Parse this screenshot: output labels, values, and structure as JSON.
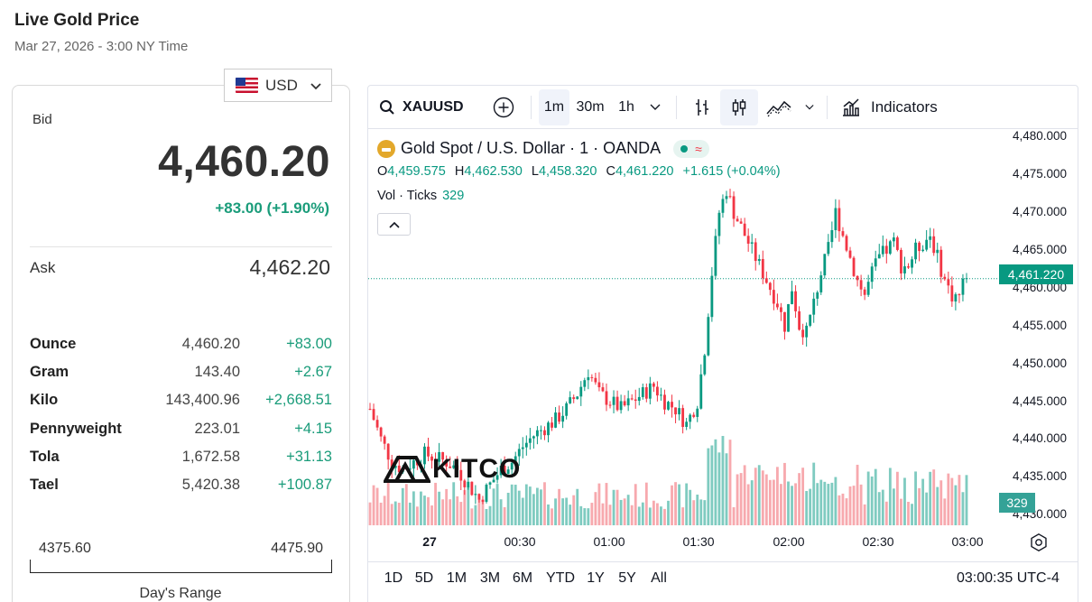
{
  "header": {
    "title": "Live Gold Price",
    "date": "Mar 27, 2026 - 3:00 NY Time"
  },
  "currency": {
    "selected": "USD",
    "flag_icon": "us-flag-icon"
  },
  "quote": {
    "bid_label": "Bid",
    "bid": "4,460.20",
    "change": "+83.00 (+1.90%)",
    "ask_label": "Ask",
    "ask": "4,462.20"
  },
  "units": [
    {
      "name": "Ounce",
      "price": "4,460.20",
      "change": "+83.00"
    },
    {
      "name": "Gram",
      "price": "143.40",
      "change": "+2.67"
    },
    {
      "name": "Kilo",
      "price": "143,400.96",
      "change": "+2,668.51"
    },
    {
      "name": "Pennyweight",
      "price": "223.01",
      "change": "+4.15"
    },
    {
      "name": "Tola",
      "price": "1,672.58",
      "change": "+31.13"
    },
    {
      "name": "Tael",
      "price": "5,420.38",
      "change": "+100.87"
    }
  ],
  "day_range": {
    "low": "4375.60",
    "high": "4475.90",
    "label": "Day's Range"
  },
  "toolbar": {
    "symbol": "XAUUSD",
    "intervals": [
      "1m",
      "30m",
      "1h"
    ],
    "active_interval": "1m",
    "indicators_label": "Indicators"
  },
  "legend": {
    "title": "Gold Spot / U.S. Dollar · 1 · OANDA",
    "o_label": "O",
    "o": "4,459.575",
    "h_label": "H",
    "h": "4,462.530",
    "l_label": "L",
    "l": "4,458.320",
    "c_label": "C",
    "c": "4,461.220",
    "change": "+1.615 (+0.04%)",
    "vol_label": "Vol · Ticks",
    "vol": "329"
  },
  "chart_data": {
    "type": "candlestick",
    "symbol": "XAUUSD",
    "interval": "1m",
    "y_ticks": [
      "4,480.000",
      "4,475.000",
      "4,470.000",
      "4,465.000",
      "4,460.000",
      "4,455.000",
      "4,450.000",
      "4,445.000",
      "4,440.000",
      "4,435.000",
      "4,430.000"
    ],
    "ylim": [
      4428,
      4481
    ],
    "x_ticks": [
      "27",
      "00:30",
      "01:00",
      "01:30",
      "02:00",
      "02:30",
      "03:00"
    ],
    "last_price": "4,461.220",
    "last_volume": "329",
    "close_path": [
      [
        0,
        4444
      ],
      [
        3,
        4440
      ],
      [
        6,
        4437
      ],
      [
        9,
        4436
      ],
      [
        12,
        4437
      ],
      [
        15,
        4438
      ],
      [
        18,
        4437.5
      ],
      [
        21,
        4437
      ],
      [
        24,
        4436
      ],
      [
        27,
        4434
      ],
      [
        30,
        4432
      ],
      [
        33,
        4434
      ],
      [
        36,
        4436
      ],
      [
        39,
        4437
      ],
      [
        42,
        4439
      ],
      [
        45,
        4440.5
      ],
      [
        48,
        4441.5
      ],
      [
        51,
        4442.5
      ],
      [
        54,
        4444
      ],
      [
        57,
        4446
      ],
      [
        60,
        4449
      ],
      [
        63,
        4446
      ],
      [
        66,
        4445
      ],
      [
        69,
        4444
      ],
      [
        72,
        4445
      ],
      [
        75,
        4446
      ],
      [
        78,
        4447
      ],
      [
        81,
        4445
      ],
      [
        84,
        4444
      ],
      [
        87,
        4442
      ],
      [
        90,
        4445
      ],
      [
        92,
        4452
      ],
      [
        94,
        4462
      ],
      [
        96,
        4470
      ],
      [
        98,
        4473
      ],
      [
        100,
        4470
      ],
      [
        102,
        4468
      ],
      [
        104,
        4466
      ],
      [
        106,
        4464
      ],
      [
        108,
        4462
      ],
      [
        110,
        4460
      ],
      [
        112,
        4458
      ],
      [
        114,
        4455
      ],
      [
        116,
        4460
      ],
      [
        118,
        4455
      ],
      [
        120,
        4454
      ],
      [
        122,
        4458
      ],
      [
        124,
        4462
      ],
      [
        126,
        4465
      ],
      [
        128,
        4470
      ],
      [
        130,
        4467
      ],
      [
        132,
        4464
      ],
      [
        134,
        4461
      ],
      [
        136,
        4459
      ],
      [
        138,
        4462
      ],
      [
        140,
        4464
      ],
      [
        142,
        4465
      ],
      [
        144,
        4466
      ],
      [
        146,
        4463
      ],
      [
        148,
        4463
      ],
      [
        150,
        4465
      ],
      [
        152,
        4466
      ],
      [
        154,
        4467
      ],
      [
        156,
        4464
      ],
      [
        158,
        4461
      ],
      [
        160,
        4459
      ],
      [
        162,
        4459
      ],
      [
        164,
        4462
      ],
      [
        166,
        4463
      ],
      [
        168,
        4461
      ],
      [
        170,
        4461.2
      ]
    ],
    "volume_note": "volume bars in ticks, last bar 329"
  },
  "time_axis": [
    "27",
    "00:30",
    "01:00",
    "01:30",
    "02:00",
    "02:30",
    "03:00"
  ],
  "ranges": [
    "1D",
    "5D",
    "1M",
    "3M",
    "6M",
    "YTD",
    "1Y",
    "5Y",
    "All"
  ],
  "clock": "03:00:35 UTC-4",
  "watermark": "KITCO",
  "colors": {
    "up": "#089981",
    "down": "#f23645",
    "up_vol": "#7fcbc0",
    "down_vol": "#f7a9ae",
    "accent": "#1a9c7a"
  }
}
